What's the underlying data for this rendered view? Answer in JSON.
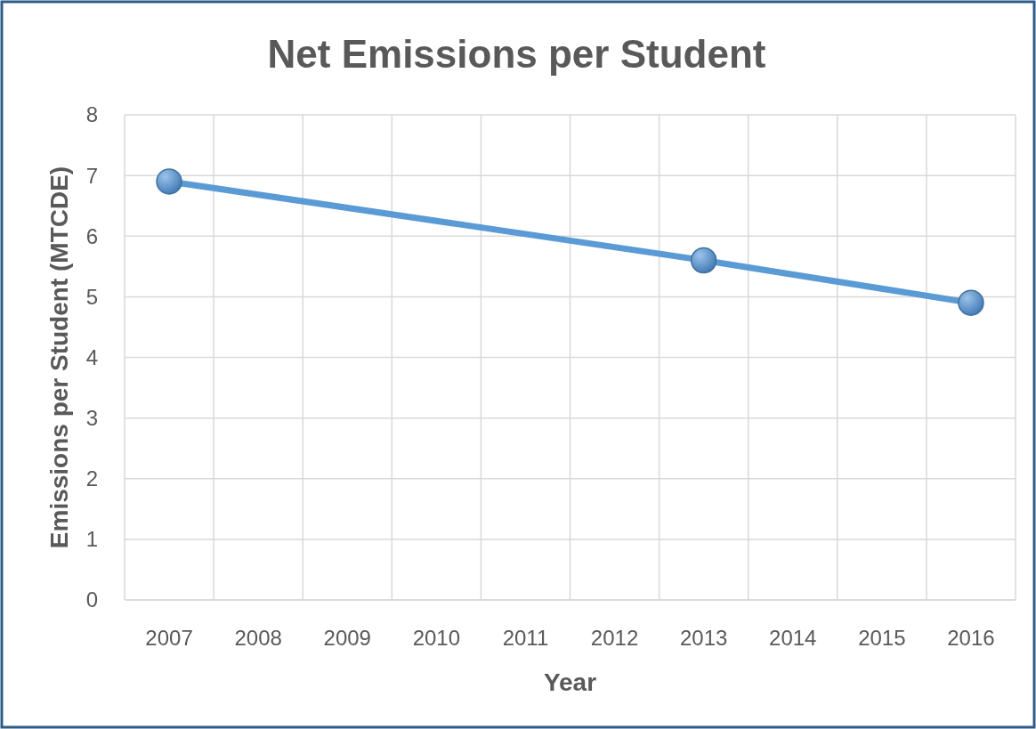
{
  "chart_data": {
    "type": "line",
    "title": "Net Emissions per Student",
    "xlabel": "Year",
    "ylabel": "Emissions per Student (MTCDE)",
    "categories": [
      "2007",
      "2008",
      "2009",
      "2010",
      "2011",
      "2012",
      "2013",
      "2014",
      "2015",
      "2016"
    ],
    "series": [
      {
        "color": "#5b9bd5",
        "values": [
          6.9,
          null,
          null,
          null,
          null,
          null,
          5.6,
          null,
          null,
          4.9
        ]
      }
    ],
    "ylim": [
      0,
      8
    ],
    "yticks": [
      0,
      1,
      2,
      3,
      4,
      5,
      6,
      7,
      8
    ],
    "grid": true,
    "marker": "circle",
    "line_style": "solid"
  }
}
